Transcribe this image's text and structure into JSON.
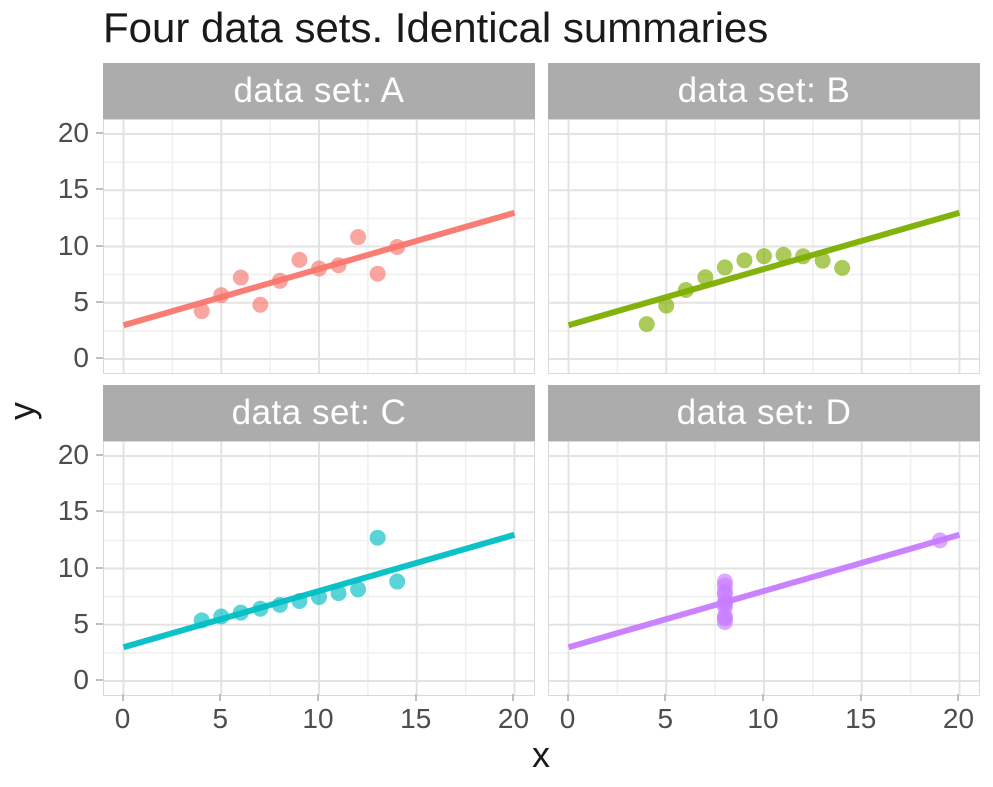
{
  "title": "Four data sets. Identical summaries",
  "chart_data": {
    "type": "scatter",
    "title": "Four data sets. Identical summaries",
    "xlabel": "x",
    "ylabel": "y",
    "x_ticks": [
      0,
      5,
      10,
      15,
      20
    ],
    "y_ticks": [
      0,
      5,
      10,
      15,
      20
    ],
    "xlim": [
      -1,
      21
    ],
    "ylim": [
      -1.25,
      21.25
    ],
    "grid": {
      "major": [
        0,
        5,
        10,
        15,
        20
      ],
      "minor": [
        2.5,
        7.5,
        12.5,
        17.5
      ],
      "on": true
    },
    "legend": "none",
    "strip_background": "#acacac",
    "strip_text_color": "#ffffff",
    "facets": [
      {
        "label": "data set: A",
        "color": "#F8766D",
        "points": [
          [
            10,
            8.04
          ],
          [
            8,
            6.95
          ],
          [
            13,
            7.58
          ],
          [
            9,
            8.81
          ],
          [
            11,
            8.33
          ],
          [
            14,
            9.96
          ],
          [
            6,
            7.24
          ],
          [
            4,
            4.26
          ],
          [
            12,
            10.84
          ],
          [
            7,
            4.82
          ],
          [
            5,
            5.68
          ]
        ],
        "line": {
          "intercept": 3,
          "slope": 0.5,
          "x_start": 0,
          "x_end": 20
        }
      },
      {
        "label": "data set: B",
        "color": "#7CAE00",
        "points": [
          [
            10,
            9.14
          ],
          [
            8,
            8.14
          ],
          [
            13,
            8.74
          ],
          [
            9,
            8.77
          ],
          [
            11,
            9.26
          ],
          [
            14,
            8.1
          ],
          [
            6,
            6.13
          ],
          [
            4,
            3.1
          ],
          [
            12,
            9.13
          ],
          [
            7,
            7.26
          ],
          [
            5,
            4.74
          ]
        ],
        "line": {
          "intercept": 3,
          "slope": 0.5,
          "x_start": 0,
          "x_end": 20
        }
      },
      {
        "label": "data set: C",
        "color": "#00BFC4",
        "points": [
          [
            10,
            7.46
          ],
          [
            8,
            6.77
          ],
          [
            13,
            12.74
          ],
          [
            9,
            7.11
          ],
          [
            11,
            7.81
          ],
          [
            14,
            8.84
          ],
          [
            6,
            6.08
          ],
          [
            4,
            5.39
          ],
          [
            12,
            8.15
          ],
          [
            7,
            6.42
          ],
          [
            5,
            5.73
          ]
        ],
        "line": {
          "intercept": 3,
          "slope": 0.5,
          "x_start": 0,
          "x_end": 20
        }
      },
      {
        "label": "data set: D",
        "color": "#C77CFF",
        "points": [
          [
            8,
            6.58
          ],
          [
            8,
            5.76
          ],
          [
            8,
            7.71
          ],
          [
            8,
            8.84
          ],
          [
            8,
            8.47
          ],
          [
            8,
            7.04
          ],
          [
            8,
            5.25
          ],
          [
            19,
            12.5
          ],
          [
            8,
            5.56
          ],
          [
            8,
            7.91
          ],
          [
            8,
            6.89
          ]
        ],
        "line": {
          "intercept": 3,
          "slope": 0.5,
          "x_start": 0,
          "x_end": 20
        }
      }
    ]
  },
  "style": {
    "grid_major_color": "#e3e3e3",
    "grid_minor_color": "#f0f0f0",
    "tick_color": "#bfbfbf",
    "tick_label_color": "#4d4d4d",
    "point_opacity": 0.65,
    "line_opacity": 0.95
  }
}
